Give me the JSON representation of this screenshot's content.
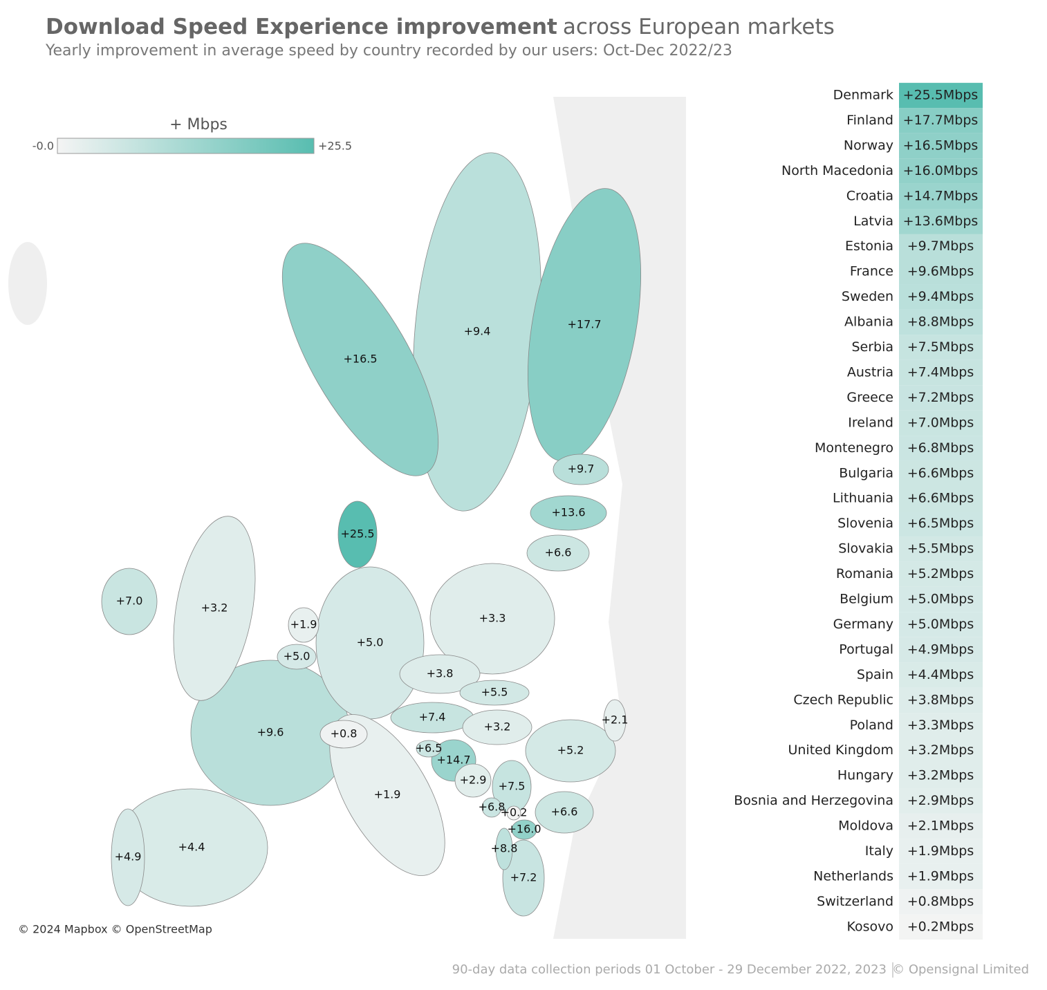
{
  "title_bold": "Download Speed Experience improvement",
  "title_rest": "across European markets",
  "subtitle": "Yearly improvement in average speed by country recorded by our users: Oct-Dec 2022/23",
  "legend": {
    "title": "+ Mbps",
    "min": {
      "value": 0,
      "label": "-0.0"
    },
    "max": {
      "value": 25.5,
      "label": "+25.5"
    }
  },
  "colors": {
    "low": "#f4f4f4",
    "high": "#58bdb0"
  },
  "countries": [
    {
      "name": "Denmark",
      "value": 25.5,
      "value_label": "+25.5Mbps",
      "map_label": "+25.5"
    },
    {
      "name": "Finland",
      "value": 17.7,
      "value_label": "+17.7Mbps",
      "map_label": "+17.7"
    },
    {
      "name": "Norway",
      "value": 16.5,
      "value_label": "+16.5Mbps",
      "map_label": "+16.5"
    },
    {
      "name": "North Macedonia",
      "value": 16.0,
      "value_label": "+16.0Mbps",
      "map_label": "+16.0"
    },
    {
      "name": "Croatia",
      "value": 14.7,
      "value_label": "+14.7Mbps",
      "map_label": "+14.7"
    },
    {
      "name": "Latvia",
      "value": 13.6,
      "value_label": "+13.6Mbps",
      "map_label": "+13.6"
    },
    {
      "name": "Estonia",
      "value": 9.7,
      "value_label": "+9.7Mbps",
      "map_label": "+9.7"
    },
    {
      "name": "France",
      "value": 9.6,
      "value_label": "+9.6Mbps",
      "map_label": "+9.6"
    },
    {
      "name": "Sweden",
      "value": 9.4,
      "value_label": "+9.4Mbps",
      "map_label": "+9.4"
    },
    {
      "name": "Albania",
      "value": 8.8,
      "value_label": "+8.8Mbps",
      "map_label": "+8.8"
    },
    {
      "name": "Serbia",
      "value": 7.5,
      "value_label": "+7.5Mbps",
      "map_label": "+7.5"
    },
    {
      "name": "Austria",
      "value": 7.4,
      "value_label": "+7.4Mbps",
      "map_label": "+7.4"
    },
    {
      "name": "Greece",
      "value": 7.2,
      "value_label": "+7.2Mbps",
      "map_label": "+7.2"
    },
    {
      "name": "Ireland",
      "value": 7.0,
      "value_label": "+7.0Mbps",
      "map_label": "+7.0"
    },
    {
      "name": "Montenegro",
      "value": 6.8,
      "value_label": "+6.8Mbps",
      "map_label": "+6.8"
    },
    {
      "name": "Bulgaria",
      "value": 6.6,
      "value_label": "+6.6Mbps",
      "map_label": "+6.6"
    },
    {
      "name": "Lithuania",
      "value": 6.6,
      "value_label": "+6.6Mbps",
      "map_label": "+6.6"
    },
    {
      "name": "Slovenia",
      "value": 6.5,
      "value_label": "+6.5Mbps",
      "map_label": "+6.5"
    },
    {
      "name": "Slovakia",
      "value": 5.5,
      "value_label": "+5.5Mbps",
      "map_label": "+5.5"
    },
    {
      "name": "Romania",
      "value": 5.2,
      "value_label": "+5.2Mbps",
      "map_label": "+5.2"
    },
    {
      "name": "Belgium",
      "value": 5.0,
      "value_label": "+5.0Mbps",
      "map_label": "+5.0"
    },
    {
      "name": "Germany",
      "value": 5.0,
      "value_label": "+5.0Mbps",
      "map_label": "+5.0"
    },
    {
      "name": "Portugal",
      "value": 4.9,
      "value_label": "+4.9Mbps",
      "map_label": "+4.9"
    },
    {
      "name": "Spain",
      "value": 4.4,
      "value_label": "+4.4Mbps",
      "map_label": "+4.4"
    },
    {
      "name": "Czech Republic",
      "value": 3.8,
      "value_label": "+3.8Mbps",
      "map_label": "+3.8"
    },
    {
      "name": "Poland",
      "value": 3.3,
      "value_label": "+3.3Mbps",
      "map_label": "+3.3"
    },
    {
      "name": "United Kingdom",
      "value": 3.2,
      "value_label": "+3.2Mbps",
      "map_label": "+3.2"
    },
    {
      "name": "Hungary",
      "value": 3.2,
      "value_label": "+3.2Mbps",
      "map_label": "+3.2"
    },
    {
      "name": "Bosnia and Herzegovina",
      "value": 2.9,
      "value_label": "+2.9Mbps",
      "map_label": "+2.9"
    },
    {
      "name": "Moldova",
      "value": 2.1,
      "value_label": "+2.1Mbps",
      "map_label": "+2.1"
    },
    {
      "name": "Italy",
      "value": 1.9,
      "value_label": "+1.9Mbps",
      "map_label": "+1.9"
    },
    {
      "name": "Netherlands",
      "value": 1.9,
      "value_label": "+1.9Mbps",
      "map_label": "+1.9"
    },
    {
      "name": "Switzerland",
      "value": 0.8,
      "value_label": "+0.8Mbps",
      "map_label": "+0.8"
    },
    {
      "name": "Kosovo",
      "value": 0.2,
      "value_label": "+0.2Mbps",
      "map_label": "+0.2"
    }
  ],
  "attribution": "© 2024 Mapbox © OpenStreetMap",
  "footer_left": "90-day data collection periods 01 October - 29 December 2022, 2023",
  "footer_right": "© Opensignal Limited"
}
